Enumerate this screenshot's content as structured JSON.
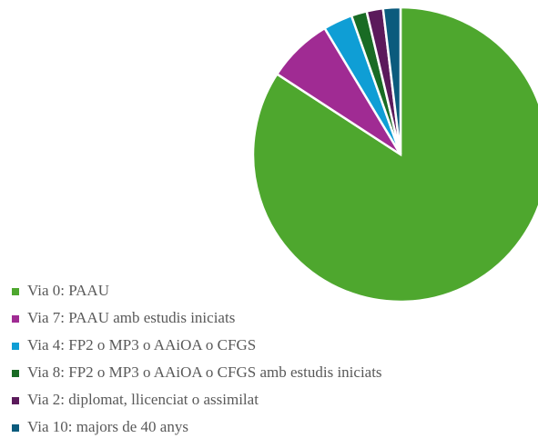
{
  "chart_data": {
    "type": "pie",
    "categories": [
      "Via 0: PAAU",
      "Via 7: PAAU amb estudis iniciats",
      "Via 4: FP2 o MP3 o AAiOA o CFGS",
      "Via 8: FP2 o MP3 o AAiOA o CFGS amb estudis iniciats",
      "Via 2: diplomat, llicenciat o assimilat",
      "Via 10: majors de 40 anys"
    ],
    "values": [
      84.2,
      7.2,
      3.2,
      1.7,
      1.8,
      1.9
    ],
    "colors": [
      "#4ea72e",
      "#a02b93",
      "#0f9ed5",
      "#196b24",
      "#5b1a5b",
      "#0b5b7d"
    ],
    "legend": "bottom-left"
  }
}
